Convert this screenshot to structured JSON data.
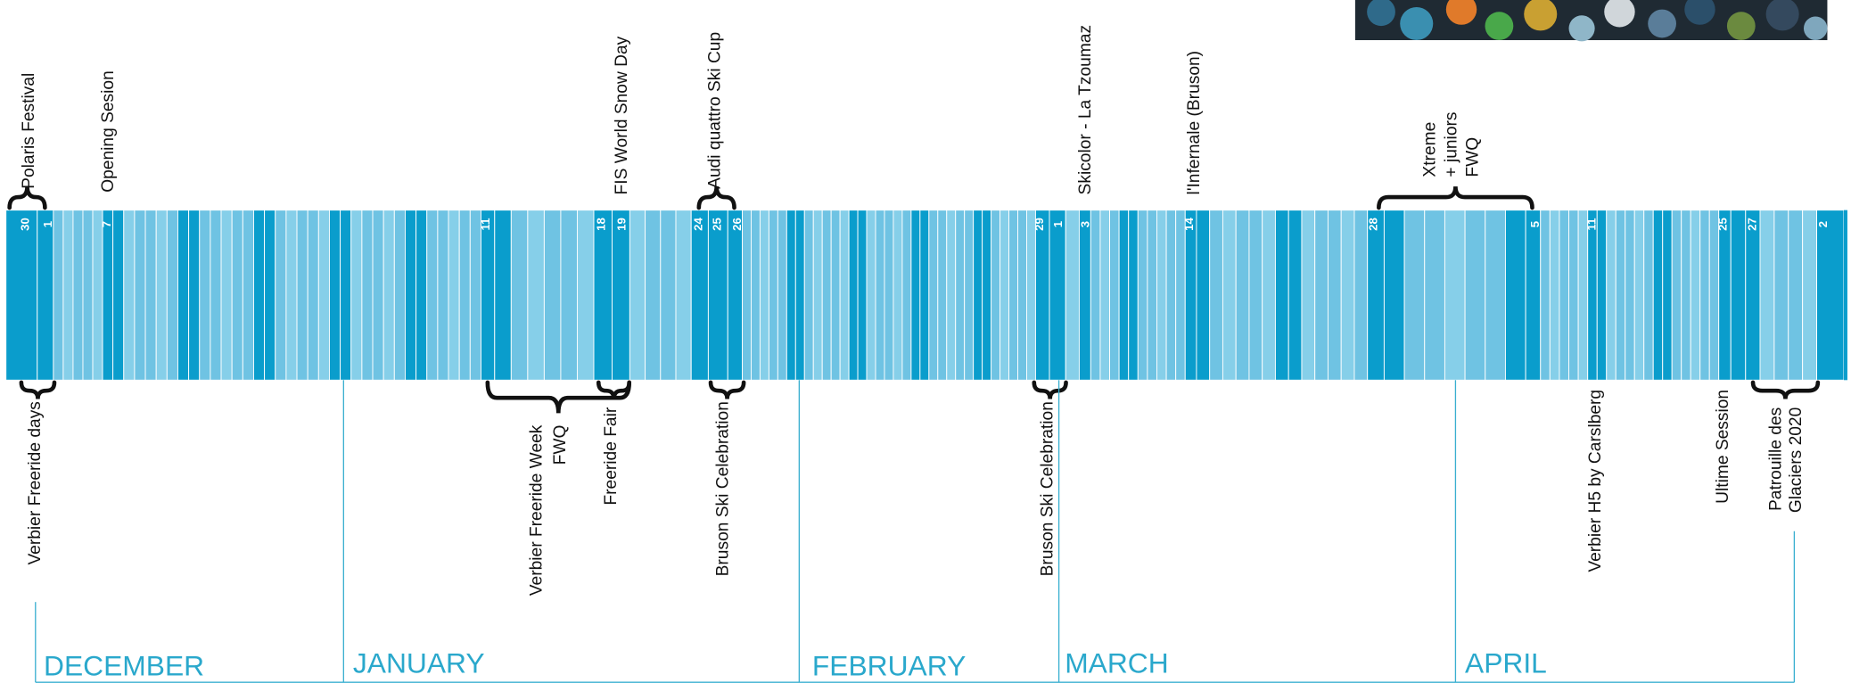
{
  "day_labels": [
    "30",
    "1",
    "7",
    "11",
    "18",
    "19",
    "24",
    "25",
    "26",
    "29",
    "1",
    "3",
    "14",
    "28",
    "5",
    "11",
    "25",
    "27",
    "2"
  ],
  "events_above": [
    {
      "lines": [
        "Polaris Festival"
      ]
    },
    {
      "lines": [
        "Opening Sesion"
      ]
    },
    {
      "lines": [
        "FIS World Snow Day"
      ]
    },
    {
      "lines": [
        "Audi quattro Ski Cup"
      ]
    },
    {
      "lines": [
        "Skicolor - La Tzoumaz"
      ]
    },
    {
      "lines": [
        "l'Infernale (Bruson)"
      ]
    },
    {
      "lines": [
        "Xtreme",
        "+ juniors",
        "FWQ"
      ]
    }
  ],
  "events_below": [
    {
      "lines": [
        "Verbier Freeride days"
      ]
    },
    {
      "lines": [
        "Verbier Freeride Week",
        "FWQ"
      ]
    },
    {
      "lines": [
        "Freeride Fair"
      ]
    },
    {
      "lines": [
        "Bruson Ski Celebration"
      ]
    },
    {
      "lines": [
        "Bruson Ski Celebration"
      ]
    },
    {
      "lines": [
        "Verbier H5 by Carslberg"
      ]
    },
    {
      "lines": [
        "Ultime Session"
      ]
    },
    {
      "lines": [
        "Patrouille des",
        "Glaciers 2020"
      ]
    }
  ],
  "months": [
    "DECEMBER",
    "JANUARY",
    "FEBRUARY",
    "MARCH",
    "APRIL"
  ]
}
